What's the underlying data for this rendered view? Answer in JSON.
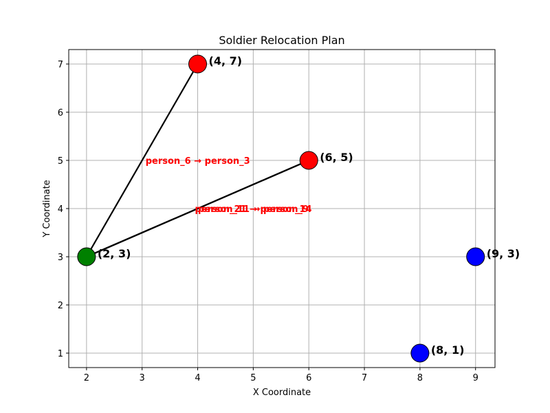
{
  "chart_data": {
    "type": "scatter",
    "title": "Soldier Relocation Plan",
    "xlabel": "X Coordinate",
    "ylabel": "Y Coordinate",
    "xlim": [
      1.68,
      9.35
    ],
    "ylim": [
      0.7,
      7.3
    ],
    "xticks": [
      2,
      3,
      4,
      5,
      6,
      7,
      8,
      9
    ],
    "yticks": [
      1,
      2,
      3,
      4,
      5,
      6,
      7
    ],
    "grid": true,
    "colors": {
      "source": "#008000",
      "destination": "#ff0000",
      "other": "#0000ff",
      "line": "#000000",
      "move_label": "#ff0000"
    },
    "points": [
      {
        "x": 2,
        "y": 3,
        "label": "(2, 3)",
        "role": "source"
      },
      {
        "x": 4,
        "y": 7,
        "label": "(4, 7)",
        "role": "destination"
      },
      {
        "x": 6,
        "y": 5,
        "label": "(6, 5)",
        "role": "destination"
      },
      {
        "x": 9,
        "y": 3,
        "label": "(9, 3)",
        "role": "other"
      },
      {
        "x": 8,
        "y": 1,
        "label": "(8, 1)",
        "role": "other"
      }
    ],
    "moves": [
      {
        "from": [
          2,
          3
        ],
        "to": [
          4,
          7
        ],
        "label": "person_6 → person_3"
      },
      {
        "from": [
          2,
          3
        ],
        "to": [
          6,
          5
        ],
        "label": "person_21 → person_14"
      },
      {
        "from": [
          2,
          3
        ],
        "to": [
          6,
          5
        ],
        "label": "person_11 → person_9"
      }
    ]
  }
}
